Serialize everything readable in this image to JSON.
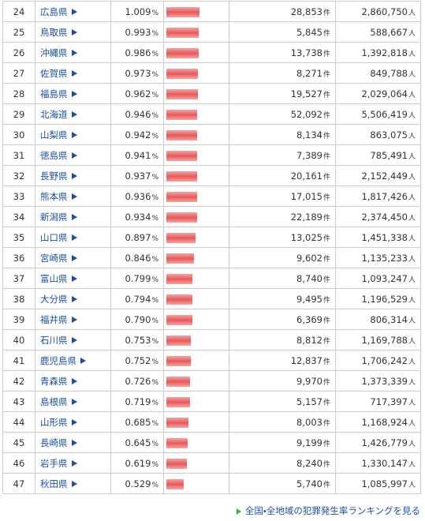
{
  "units": {
    "rate": "%",
    "crimes": "件",
    "population": "人"
  },
  "rows": [
    {
      "rank": 24,
      "name": "広島県",
      "rate": "1.009",
      "crimes": "28,853",
      "population": "2,860,750"
    },
    {
      "rank": 25,
      "name": "鳥取県",
      "rate": "0.993",
      "crimes": "5,845",
      "population": "588,667"
    },
    {
      "rank": 26,
      "name": "沖縄県",
      "rate": "0.986",
      "crimes": "13,738",
      "population": "1,392,818"
    },
    {
      "rank": 27,
      "name": "佐賀県",
      "rate": "0.973",
      "crimes": "8,271",
      "population": "849,788"
    },
    {
      "rank": 28,
      "name": "福島県",
      "rate": "0.962",
      "crimes": "19,527",
      "population": "2,029,064"
    },
    {
      "rank": 29,
      "name": "北海道",
      "rate": "0.946",
      "crimes": "52,092",
      "population": "5,506,419"
    },
    {
      "rank": 30,
      "name": "山梨県",
      "rate": "0.942",
      "crimes": "8,134",
      "population": "863,075"
    },
    {
      "rank": 31,
      "name": "徳島県",
      "rate": "0.941",
      "crimes": "7,389",
      "population": "785,491"
    },
    {
      "rank": 32,
      "name": "長野県",
      "rate": "0.937",
      "crimes": "20,161",
      "population": "2,152,449"
    },
    {
      "rank": 33,
      "name": "熊本県",
      "rate": "0.936",
      "crimes": "17,015",
      "population": "1,817,426"
    },
    {
      "rank": 34,
      "name": "新潟県",
      "rate": "0.934",
      "crimes": "22,189",
      "population": "2,374,450"
    },
    {
      "rank": 35,
      "name": "山口県",
      "rate": "0.897",
      "crimes": "13,025",
      "population": "1,451,338"
    },
    {
      "rank": 36,
      "name": "宮崎県",
      "rate": "0.846",
      "crimes": "9,602",
      "population": "1,135,233"
    },
    {
      "rank": 37,
      "name": "富山県",
      "rate": "0.799",
      "crimes": "8,740",
      "population": "1,093,247"
    },
    {
      "rank": 38,
      "name": "大分県",
      "rate": "0.794",
      "crimes": "9,495",
      "population": "1,196,529"
    },
    {
      "rank": 39,
      "name": "福井県",
      "rate": "0.790",
      "crimes": "6,369",
      "population": "806,314"
    },
    {
      "rank": 40,
      "name": "石川県",
      "rate": "0.753",
      "crimes": "8,812",
      "population": "1,169,788"
    },
    {
      "rank": 41,
      "name": "鹿児島県",
      "rate": "0.752",
      "crimes": "12,837",
      "population": "1,706,242"
    },
    {
      "rank": 42,
      "name": "青森県",
      "rate": "0.726",
      "crimes": "9,970",
      "population": "1,373,339"
    },
    {
      "rank": 43,
      "name": "島根県",
      "rate": "0.719",
      "crimes": "5,157",
      "population": "717,397"
    },
    {
      "rank": 44,
      "name": "山形県",
      "rate": "0.685",
      "crimes": "8,003",
      "population": "1,168,924"
    },
    {
      "rank": 45,
      "name": "長崎県",
      "rate": "0.645",
      "crimes": "9,199",
      "population": "1,426,779"
    },
    {
      "rank": 46,
      "name": "岩手県",
      "rate": "0.619",
      "crimes": "8,240",
      "population": "1,330,147"
    },
    {
      "rank": 47,
      "name": "秋田県",
      "rate": "0.529",
      "crimes": "5,740",
      "population": "1,085,997"
    }
  ],
  "footer_link": "全国・全地域の犯罪発生率ランキングを見る"
}
